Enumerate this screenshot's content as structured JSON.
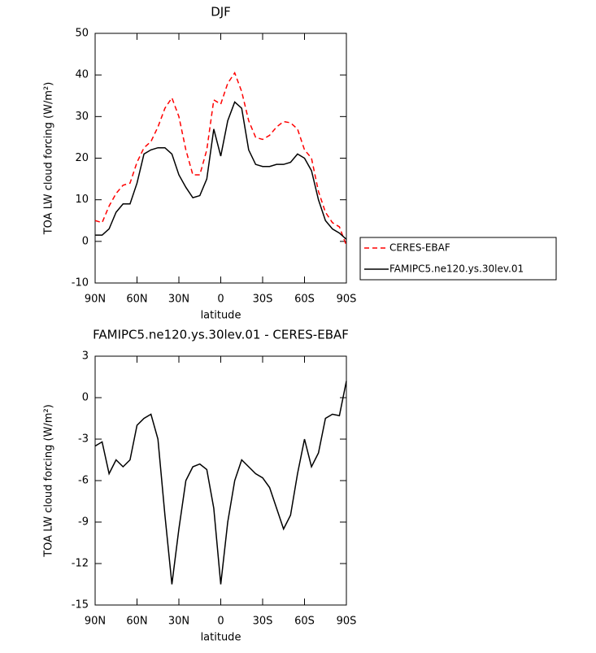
{
  "chart_data": [
    {
      "type": "line",
      "title": "DJF",
      "xlabel": "latitude",
      "ylabel": "TOA LW cloud forcing (W/m²)",
      "x": [
        90,
        85,
        80,
        75,
        70,
        65,
        60,
        55,
        50,
        45,
        40,
        35,
        30,
        25,
        20,
        15,
        10,
        5,
        0,
        -5,
        -10,
        -15,
        -20,
        -25,
        -30,
        -35,
        -40,
        -45,
        -50,
        -55,
        -60,
        -65,
        -70,
        -75,
        -80,
        -85,
        -90
      ],
      "series": [
        {
          "name": "CERES-EBAF",
          "color": "#ff0000",
          "dash": "dashed",
          "values": [
            5,
            4.5,
            8.5,
            11.5,
            13.5,
            14,
            19,
            22.5,
            24,
            27.5,
            32,
            34.5,
            30,
            22,
            16,
            16,
            22,
            34,
            33,
            38,
            40.5,
            36,
            29,
            25,
            24.5,
            25.5,
            27.5,
            28.8,
            28.5,
            27,
            22,
            20,
            12,
            7,
            4.5,
            3.5,
            -1
          ]
        },
        {
          "name": "FAMIPC5.ne120.ys.30lev.01",
          "color": "#000000",
          "dash": "solid",
          "values": [
            1.5,
            1.5,
            3,
            7,
            9,
            9,
            14,
            21,
            22,
            22.5,
            22.5,
            21,
            16,
            13,
            10.5,
            11,
            15,
            27,
            20.5,
            29,
            33.5,
            32,
            22,
            18.5,
            18,
            18,
            18.5,
            18.5,
            19,
            21,
            20,
            17,
            10,
            5,
            3,
            2,
            0.5
          ]
        }
      ],
      "xlim": [
        90,
        -90
      ],
      "xticks": [
        {
          "value": 90,
          "label": "90N"
        },
        {
          "value": 60,
          "label": "60N"
        },
        {
          "value": 30,
          "label": "30N"
        },
        0,
        {
          "value": -30,
          "label": "30S"
        },
        {
          "value": -60,
          "label": "60S"
        },
        {
          "value": -90,
          "label": "90S"
        }
      ],
      "ylim": [
        -10,
        50
      ],
      "yticks": [
        -10,
        0,
        10,
        20,
        30,
        40,
        50
      ],
      "legend": "right"
    },
    {
      "type": "line",
      "title": "FAMIPC5.ne120.ys.30lev.01 - CERES-EBAF",
      "xlabel": "latitude",
      "ylabel": "TOA LW cloud forcing (W/m²)",
      "x": [
        90,
        85,
        80,
        75,
        70,
        65,
        60,
        55,
        50,
        45,
        40,
        35,
        30,
        25,
        20,
        15,
        10,
        5,
        0,
        -5,
        -10,
        -15,
        -20,
        -25,
        -30,
        -35,
        -40,
        -45,
        -50,
        -55,
        -60,
        -65,
        -70,
        -75,
        -80,
        -85,
        -90
      ],
      "series": [
        {
          "color": "#000000",
          "dash": "solid",
          "values": [
            -3.5,
            -3.2,
            -5.5,
            -4.5,
            -5,
            -4.5,
            -2,
            -1.5,
            -1.2,
            -3,
            -8.5,
            -13.5,
            -9.5,
            -6,
            -5,
            -4.8,
            -5.2,
            -8,
            -13.5,
            -9,
            -6,
            -4.5,
            -5,
            -5.5,
            -5.8,
            -6.5,
            -8,
            -9.5,
            -8.5,
            -5.5,
            -3,
            -5,
            -4,
            -1.5,
            -1.2,
            -1.3,
            1.2
          ]
        }
      ],
      "xlim": [
        90,
        -90
      ],
      "xticks": [
        {
          "value": 90,
          "label": "90N"
        },
        {
          "value": 60,
          "label": "60N"
        },
        {
          "value": 30,
          "label": "30N"
        },
        0,
        {
          "value": -30,
          "label": "30S"
        },
        {
          "value": -60,
          "label": "60S"
        },
        {
          "value": -90,
          "label": "90S"
        }
      ],
      "ylim": [
        -15,
        3
      ],
      "yticks": [
        -15,
        -12,
        -9,
        -6,
        -3,
        0,
        3
      ]
    }
  ]
}
